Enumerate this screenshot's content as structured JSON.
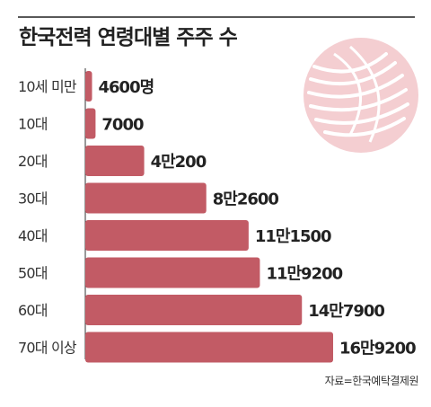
{
  "header": {
    "title": "한국전력 연령대별 주주 수"
  },
  "footer": {
    "source": "자료=한국예탁결제원"
  },
  "colors": {
    "bar": "#c25b65",
    "logo": "#f3c9cd",
    "axis": "#333333",
    "rule": "#222222"
  },
  "chart_data": {
    "type": "bar",
    "orientation": "horizontal",
    "title": "한국전력 연령대별 주주 수",
    "xlabel": "",
    "ylabel": "",
    "categories": [
      "10세 미만",
      "10대",
      "20대",
      "30대",
      "40대",
      "50대",
      "60대",
      "70대 이상"
    ],
    "values": [
      4600,
      7000,
      40200,
      82600,
      111500,
      119200,
      147900,
      169200
    ],
    "value_labels": [
      "4600명",
      "7000",
      "4만200",
      "8만2600",
      "11만1500",
      "11만9200",
      "14만7900",
      "16만9200"
    ],
    "grid": false,
    "legend": "none"
  }
}
